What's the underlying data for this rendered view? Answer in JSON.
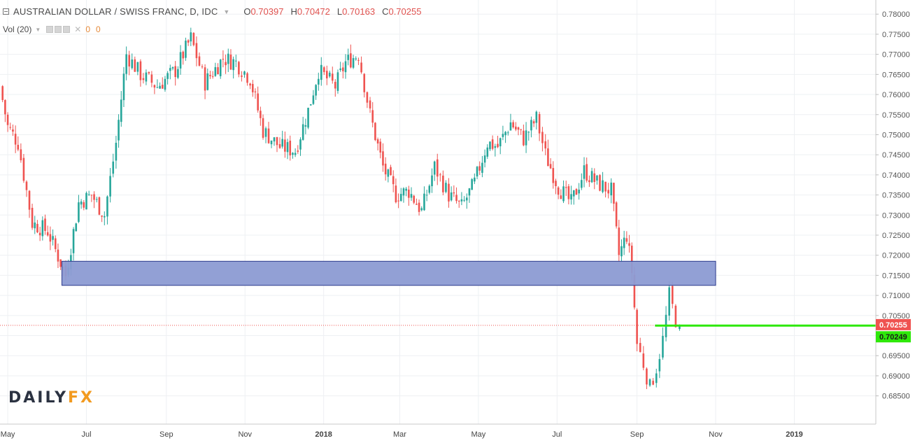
{
  "header": {
    "symbol_title": "AUSTRALIAN DOLLAR / SWISS FRANC, D, IDC",
    "open_label": "O",
    "open_value": "0.70397",
    "high_label": "H",
    "high_value": "0.70472",
    "low_label": "L",
    "low_value": "0.70163",
    "close_label": "C",
    "close_value": "0.70255",
    "volume_label": "Vol (20)",
    "volume_value_1": "0",
    "volume_value_2": "0"
  },
  "logo": {
    "part1": "DAILY",
    "part2": "FX"
  },
  "price_tags": {
    "last": "0.70255",
    "level": "0.70249"
  },
  "colors": {
    "up": "#26a69a",
    "down": "#ef5350",
    "zone_fill": "#8c9bd3",
    "zone_border": "#2c3a8c",
    "level_line": "#2ee80a",
    "last_tag": "#ef5350",
    "level_tag": "#2ee80a"
  },
  "chart_data": {
    "type": "candlestick",
    "instrument": "AUD/CHF",
    "timeframe": "D",
    "ylim": [
      0.6825,
      0.783
    ],
    "y_ticks": [
      "0.78000",
      "0.77500",
      "0.77000",
      "0.76500",
      "0.76000",
      "0.75500",
      "0.75000",
      "0.74500",
      "0.74000",
      "0.73500",
      "0.73000",
      "0.72500",
      "0.72000",
      "0.71500",
      "0.71000",
      "0.70500",
      "0.70000",
      "0.69500",
      "0.69000",
      "0.68500"
    ],
    "x_ticks": [
      "May",
      "Jul",
      "Sep",
      "Nov",
      "2018",
      "Mar",
      "May",
      "Jul",
      "Sep",
      "Nov",
      "2019"
    ],
    "price_path": [
      {
        "date": "2017-04-25",
        "close": 0.762
      },
      {
        "date": "2017-05-01",
        "close": 0.752
      },
      {
        "date": "2017-05-09",
        "close": 0.748
      },
      {
        "date": "2017-05-20",
        "close": 0.728
      },
      {
        "date": "2017-06-01",
        "close": 0.726
      },
      {
        "date": "2017-06-15",
        "close": 0.715
      },
      {
        "date": "2017-06-25",
        "close": 0.733
      },
      {
        "date": "2017-07-05",
        "close": 0.735
      },
      {
        "date": "2017-07-15",
        "close": 0.73
      },
      {
        "date": "2017-07-24",
        "close": 0.748
      },
      {
        "date": "2017-08-01",
        "close": 0.77
      },
      {
        "date": "2017-08-12",
        "close": 0.765
      },
      {
        "date": "2017-08-25",
        "close": 0.762
      },
      {
        "date": "2017-09-08",
        "close": 0.766
      },
      {
        "date": "2017-09-20",
        "close": 0.774
      },
      {
        "date": "2017-10-01",
        "close": 0.763
      },
      {
        "date": "2017-10-15",
        "close": 0.769
      },
      {
        "date": "2017-10-25",
        "close": 0.768
      },
      {
        "date": "2017-11-05",
        "close": 0.764
      },
      {
        "date": "2017-11-15",
        "close": 0.751
      },
      {
        "date": "2017-11-28",
        "close": 0.747
      },
      {
        "date": "2017-12-10",
        "close": 0.746
      },
      {
        "date": "2017-12-20",
        "close": 0.756
      },
      {
        "date": "2017-12-28",
        "close": 0.766
      },
      {
        "date": "2018-01-10",
        "close": 0.762
      },
      {
        "date": "2018-01-18",
        "close": 0.768
      },
      {
        "date": "2018-01-28",
        "close": 0.77
      },
      {
        "date": "2018-02-06",
        "close": 0.755
      },
      {
        "date": "2018-02-16",
        "close": 0.742
      },
      {
        "date": "2018-02-26",
        "close": 0.735
      },
      {
        "date": "2018-03-08",
        "close": 0.736
      },
      {
        "date": "2018-03-18",
        "close": 0.731
      },
      {
        "date": "2018-03-28",
        "close": 0.742
      },
      {
        "date": "2018-04-08",
        "close": 0.735
      },
      {
        "date": "2018-04-18",
        "close": 0.732
      },
      {
        "date": "2018-04-28",
        "close": 0.738
      },
      {
        "date": "2018-05-08",
        "close": 0.748
      },
      {
        "date": "2018-05-16",
        "close": 0.747
      },
      {
        "date": "2018-05-26",
        "close": 0.753
      },
      {
        "date": "2018-06-05",
        "close": 0.749
      },
      {
        "date": "2018-06-15",
        "close": 0.754
      },
      {
        "date": "2018-06-22",
        "close": 0.745
      },
      {
        "date": "2018-07-02",
        "close": 0.737
      },
      {
        "date": "2018-07-12",
        "close": 0.733
      },
      {
        "date": "2018-07-22",
        "close": 0.741
      },
      {
        "date": "2018-08-01",
        "close": 0.738
      },
      {
        "date": "2018-08-12",
        "close": 0.736
      },
      {
        "date": "2018-08-18",
        "close": 0.72
      },
      {
        "date": "2018-08-24",
        "close": 0.725
      },
      {
        "date": "2018-08-28",
        "close": 0.716
      },
      {
        "date": "2018-09-01",
        "close": 0.698
      },
      {
        "date": "2018-09-06",
        "close": 0.693
      },
      {
        "date": "2018-09-11",
        "close": 0.687
      },
      {
        "date": "2018-09-16",
        "close": 0.692
      },
      {
        "date": "2018-09-21",
        "close": 0.699
      },
      {
        "date": "2018-09-26",
        "close": 0.71
      },
      {
        "date": "2018-10-01",
        "close": 0.704
      },
      {
        "date": "2018-10-04",
        "close": 0.70255
      }
    ],
    "annotations": [
      {
        "type": "support_zone",
        "from": "2017-06-12",
        "to": "2018-11-01",
        "low": 0.7125,
        "high": 0.7185
      },
      {
        "type": "horizontal_level",
        "from": "2018-09-15",
        "value": 0.70249
      },
      {
        "type": "last_price_line",
        "value": 0.70255
      }
    ]
  }
}
